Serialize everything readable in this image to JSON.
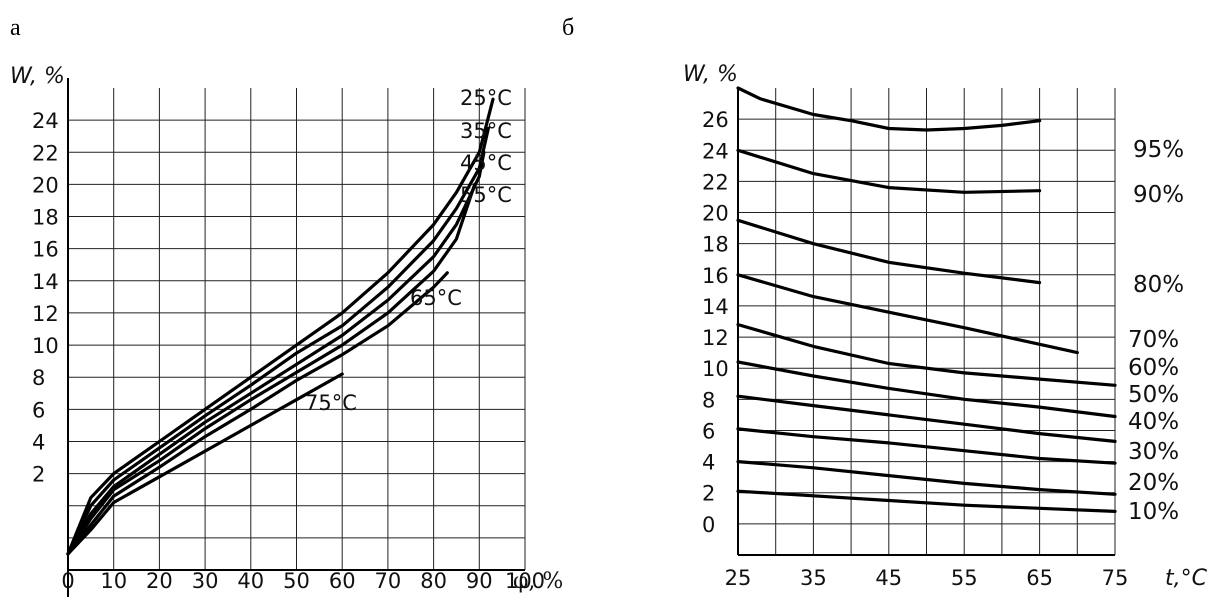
{
  "chart_data": [
    {
      "panel_label": "а",
      "type": "line",
      "ylabel": "W, %",
      "xlabel": "φ, %",
      "x_ticks": [
        "0",
        "10",
        "20",
        "30",
        "40",
        "50",
        "60",
        "70",
        "80",
        "90",
        "100"
      ],
      "y_ticks": [
        "2",
        "4",
        "6",
        "8",
        "10",
        "12",
        "14",
        "16",
        "18",
        "20",
        "22",
        "24"
      ],
      "xlim": [
        0,
        100
      ],
      "ylim": [
        -4,
        26
      ],
      "grid": true,
      "series": [
        {
          "name": "25°C",
          "x": [
            0,
            5,
            10,
            20,
            30,
            40,
            50,
            60,
            70,
            80,
            85,
            90,
            93
          ],
          "y": [
            -3,
            0.5,
            2,
            4,
            6,
            8,
            10,
            12,
            14.5,
            17.5,
            19.5,
            22,
            25.3
          ]
        },
        {
          "name": "35°C",
          "x": [
            0,
            5,
            10,
            20,
            30,
            40,
            50,
            60,
            70,
            80,
            85,
            90,
            92
          ],
          "y": [
            -3,
            0,
            1.6,
            3.6,
            5.6,
            7.5,
            9.5,
            11.2,
            13.6,
            16.5,
            18.5,
            21,
            23.5
          ]
        },
        {
          "name": "45°C",
          "x": [
            0,
            5,
            10,
            20,
            30,
            40,
            50,
            60,
            70,
            80,
            85,
            90,
            91
          ],
          "y": [
            -3,
            -0.5,
            1.2,
            3.2,
            5.2,
            7,
            8.8,
            10.6,
            12.8,
            15.5,
            17.5,
            20.5,
            22
          ]
        },
        {
          "name": "55°C",
          "x": [
            0,
            5,
            10,
            20,
            30,
            40,
            50,
            60,
            70,
            80,
            85,
            89
          ],
          "y": [
            -3,
            -0.8,
            1,
            2.8,
            4.8,
            6.6,
            8.3,
            10,
            12,
            14.6,
            16.6,
            20
          ]
        },
        {
          "name": "65°C",
          "x": [
            0,
            5,
            10,
            20,
            30,
            40,
            50,
            60,
            70,
            80,
            83
          ],
          "y": [
            -3,
            -1.2,
            0.6,
            2.4,
            4.3,
            6,
            7.8,
            9.4,
            11.2,
            13.6,
            14.5
          ]
        },
        {
          "name": "75°C",
          "x": [
            0,
            5,
            10,
            20,
            30,
            40,
            50,
            60
          ],
          "y": [
            -3,
            -1.5,
            0.2,
            1.8,
            3.4,
            5,
            6.6,
            8.2
          ]
        }
      ]
    },
    {
      "panel_label": "б",
      "type": "line",
      "ylabel": "W, %",
      "xlabel": "t,°C",
      "x_ticks": [
        "25",
        "35",
        "45",
        "55",
        "65",
        "75"
      ],
      "y_ticks": [
        "0",
        "2",
        "4",
        "6",
        "8",
        "10",
        "12",
        "14",
        "16",
        "18",
        "20",
        "22",
        "24",
        "26"
      ],
      "xlim": [
        25,
        75
      ],
      "ylim": [
        -2,
        28
      ],
      "grid": true,
      "series": [
        {
          "name": "95%",
          "x": [
            25,
            28,
            35,
            40,
            45,
            50,
            55,
            60,
            65
          ],
          "y": [
            28,
            27.3,
            26.3,
            25.9,
            25.4,
            25.3,
            25.4,
            25.6,
            25.9
          ]
        },
        {
          "name": "90%",
          "x": [
            25,
            35,
            45,
            55,
            65
          ],
          "y": [
            24,
            22.5,
            21.6,
            21.3,
            21.4
          ]
        },
        {
          "name": "80%",
          "x": [
            25,
            35,
            45,
            55,
            65
          ],
          "y": [
            19.5,
            18,
            16.8,
            16.1,
            15.5
          ]
        },
        {
          "name": "70%",
          "x": [
            25,
            35,
            45,
            55,
            70
          ],
          "y": [
            16,
            14.6,
            13.6,
            12.6,
            11
          ]
        },
        {
          "name": "60%",
          "x": [
            25,
            35,
            45,
            55,
            65,
            75
          ],
          "y": [
            12.8,
            11.4,
            10.3,
            9.7,
            9.3,
            8.9
          ]
        },
        {
          "name": "50%",
          "x": [
            25,
            35,
            45,
            55,
            65,
            75
          ],
          "y": [
            10.4,
            9.5,
            8.7,
            8,
            7.5,
            6.9
          ]
        },
        {
          "name": "40%",
          "x": [
            25,
            35,
            45,
            55,
            65,
            75
          ],
          "y": [
            8.2,
            7.6,
            7,
            6.4,
            5.8,
            5.3
          ]
        },
        {
          "name": "30%",
          "x": [
            25,
            35,
            45,
            55,
            65,
            75
          ],
          "y": [
            6.1,
            5.6,
            5.2,
            4.7,
            4.2,
            3.9
          ]
        },
        {
          "name": "20%",
          "x": [
            25,
            35,
            45,
            55,
            65,
            75
          ],
          "y": [
            4,
            3.6,
            3.1,
            2.6,
            2.2,
            1.9
          ]
        },
        {
          "name": "10%",
          "x": [
            25,
            35,
            45,
            55,
            65,
            75
          ],
          "y": [
            2.1,
            1.8,
            1.5,
            1.2,
            1,
            0.8
          ]
        }
      ]
    }
  ]
}
